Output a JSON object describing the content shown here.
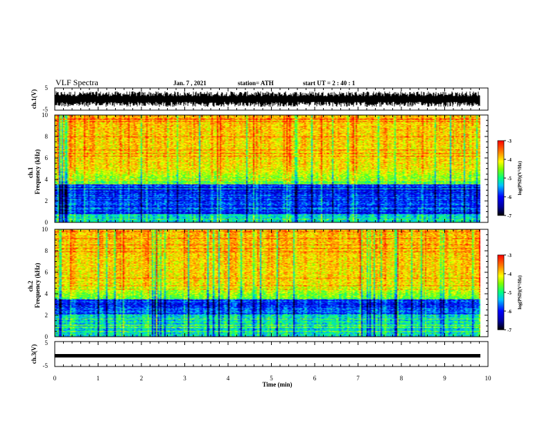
{
  "header": {
    "title": "VLF Spectra",
    "date": "Jan. 7 , 2021",
    "station": "station= ATH",
    "start": "start UT = 2 : 40 : 1"
  },
  "colors": {
    "spectrogram": [
      "#000090",
      "#0000ff",
      "#0080ff",
      "#00ffff",
      "#00ff80",
      "#80ff00",
      "#ffff00",
      "#ffa000",
      "#ff0000"
    ],
    "waveform": "#000000"
  },
  "chart_data": [
    {
      "type": "line",
      "ylabel": "ch.1(V)",
      "ylim": [
        -5,
        5
      ],
      "yticks": [
        "5",
        "-5"
      ],
      "xlim": [
        0,
        10
      ],
      "description_values": {
        "amplitude_min": -3.5,
        "amplitude_max": 3.5
      }
    },
    {
      "type": "heatmap",
      "ylabel": "ch.1 Frequency (kHz)",
      "ylim": [
        0,
        10
      ],
      "yticks": [
        "0",
        "2",
        "4",
        "6",
        "8",
        "10"
      ],
      "xlim": [
        0,
        10
      ],
      "zlabel": "log(PSD)(V²/Hz)",
      "zlim": [
        -7,
        -3
      ],
      "zticks": [
        "-3",
        "-4",
        "-5",
        "-6",
        "-7"
      ]
    },
    {
      "type": "heatmap",
      "ylabel": "ch.2 Frequency (kHz)",
      "ylim": [
        0,
        10
      ],
      "yticks": [
        "0",
        "2",
        "4",
        "6",
        "8",
        "10"
      ],
      "xlim": [
        0,
        10
      ],
      "zlabel": "log(PSD)(V²/Hz)",
      "zlim": [
        -7,
        -3
      ],
      "zticks": [
        "-3",
        "-4",
        "-5",
        "-6",
        "-7"
      ]
    },
    {
      "type": "line",
      "ylabel": "ch.3(V)",
      "ylim": [
        -5,
        5
      ],
      "yticks": [
        "5",
        "-5"
      ],
      "xlim": [
        0,
        10
      ],
      "level": -0.7
    }
  ],
  "xaxis": {
    "label": "Time (min)",
    "ticks": [
      "0",
      "1",
      "2",
      "3",
      "4",
      "5",
      "6",
      "7",
      "8",
      "9",
      "10"
    ]
  }
}
